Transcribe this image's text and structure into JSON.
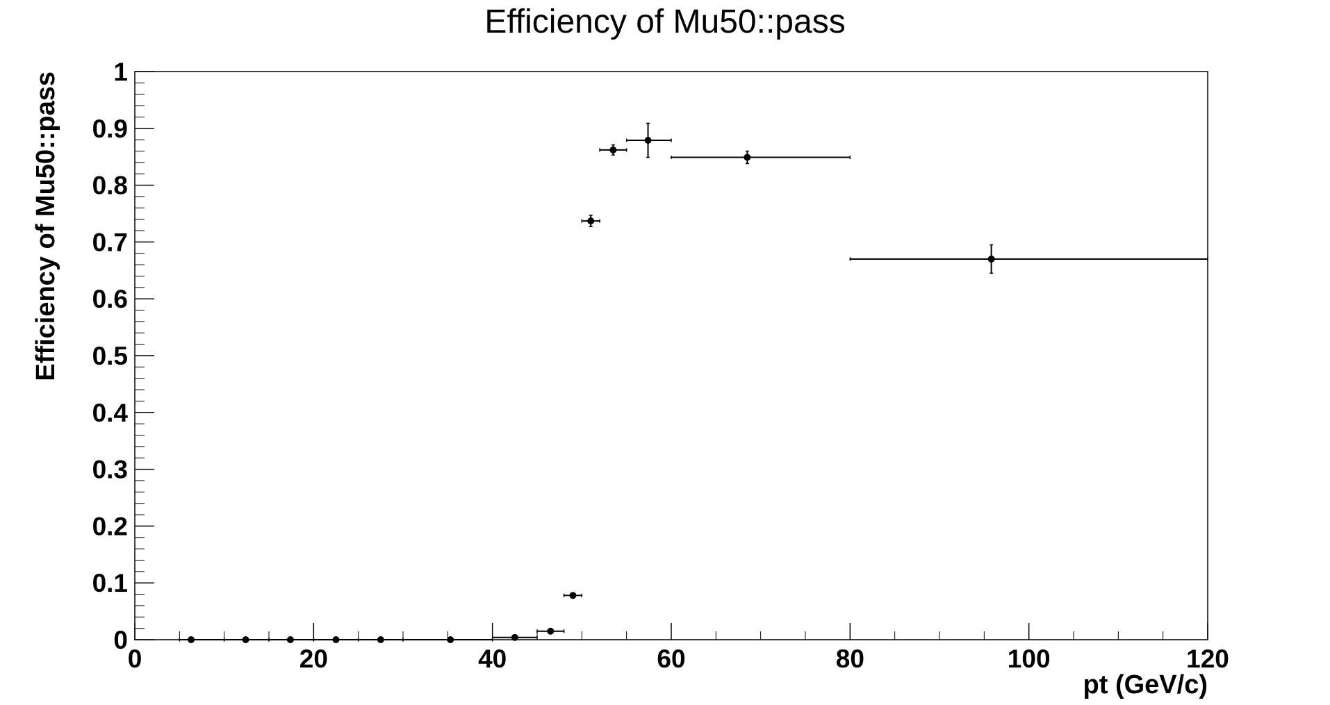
{
  "chart_data": {
    "type": "scatter",
    "title": "Efficiency of Mu50::pass",
    "xlabel": "pt (GeV/c)",
    "ylabel": "Efficiency of Mu50::pass",
    "xlim": [
      0,
      120
    ],
    "ylim": [
      0,
      1
    ],
    "x_ticks": [
      "0",
      "20",
      "40",
      "60",
      "80",
      "100",
      "120"
    ],
    "y_ticks": [
      "0",
      "0.1",
      "0.2",
      "0.3",
      "0.4",
      "0.5",
      "0.6",
      "0.7",
      "0.8",
      "0.9",
      "1"
    ],
    "grid": false,
    "legend": "none",
    "marker_color": "#000000",
    "points": [
      {
        "x": 6.3,
        "xlow": 5,
        "xhigh": 10,
        "y": 0.0,
        "err": 0.0
      },
      {
        "x": 12.4,
        "xlow": 10,
        "xhigh": 15,
        "y": 0.0,
        "err": 0.0
      },
      {
        "x": 17.4,
        "xlow": 15,
        "xhigh": 20,
        "y": 0.0,
        "err": 0.0
      },
      {
        "x": 22.5,
        "xlow": 20,
        "xhigh": 25,
        "y": 0.0,
        "err": 0.0
      },
      {
        "x": 27.5,
        "xlow": 25,
        "xhigh": 30,
        "y": 0.0,
        "err": 0.0
      },
      {
        "x": 35.3,
        "xlow": 30,
        "xhigh": 40,
        "y": 0.0,
        "err": 0.0
      },
      {
        "x": 42.5,
        "xlow": 40,
        "xhigh": 45,
        "y": 0.004,
        "err": 0.001
      },
      {
        "x": 46.5,
        "xlow": 45,
        "xhigh": 48,
        "y": 0.015,
        "err": 0.002
      },
      {
        "x": 49.0,
        "xlow": 48,
        "xhigh": 50,
        "y": 0.078,
        "err": 0.004
      },
      {
        "x": 51.0,
        "xlow": 50,
        "xhigh": 52,
        "y": 0.737,
        "err": 0.01
      },
      {
        "x": 53.5,
        "xlow": 52,
        "xhigh": 55,
        "y": 0.862,
        "err": 0.009
      },
      {
        "x": 57.4,
        "xlow": 55,
        "xhigh": 60,
        "y": 0.879,
        "err": 0.03
      },
      {
        "x": 68.5,
        "xlow": 60,
        "xhigh": 80,
        "y": 0.849,
        "err": 0.011
      },
      {
        "x": 95.8,
        "xlow": 80,
        "xhigh": 120,
        "y": 0.67,
        "err": 0.025
      }
    ]
  }
}
